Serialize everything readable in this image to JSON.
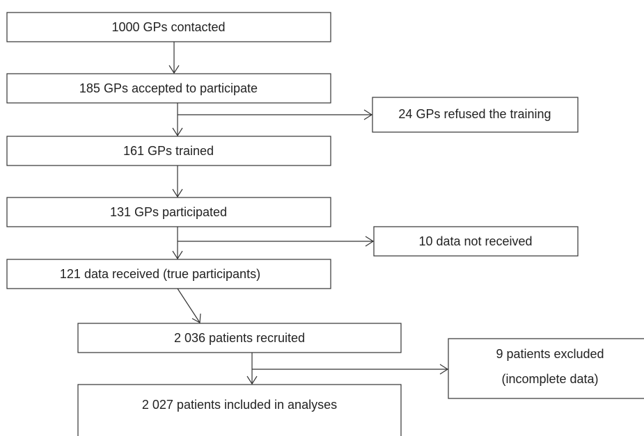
{
  "nodes": [
    {
      "label": "1000 GPs contacted"
    },
    {
      "label": "185 GPs accepted to participate"
    },
    {
      "label": "24 GPs refused the training"
    },
    {
      "label": "161 GPs trained"
    },
    {
      "label": "131 GPs participated"
    },
    {
      "label": "10 data not received"
    },
    {
      "label": "121 data received (true participants)"
    },
    {
      "label": "2 036 patients recruited"
    },
    {
      "label": "9 patients excluded"
    },
    {
      "label": "(incomplete data)"
    },
    {
      "label": "2 027 patients included in analyses"
    }
  ]
}
